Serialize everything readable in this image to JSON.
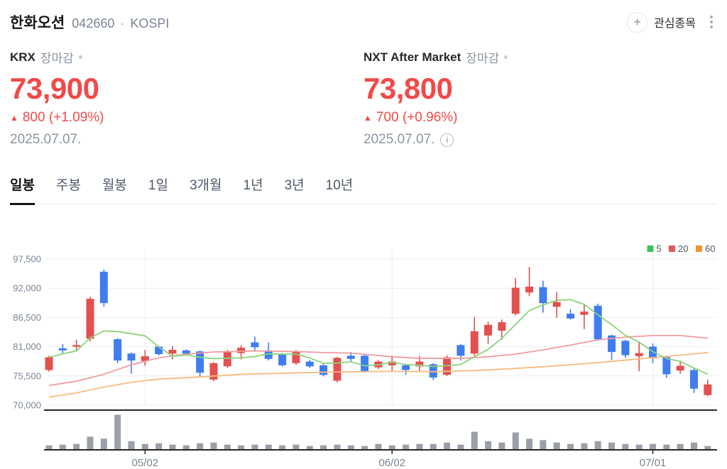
{
  "header": {
    "title": "한화오션",
    "code": "042660",
    "separator": "·",
    "market": "KOSPI",
    "watchlist_label": "관심종목",
    "plus_glyph": "+"
  },
  "markets": {
    "krx": {
      "name": "KRX",
      "status": "장마감",
      "price": "73,900",
      "arrow": "▲",
      "change": "800 (+1.09%)",
      "date": "2025.07.07."
    },
    "nxt": {
      "name": "NXT After Market",
      "status": "장마감",
      "price": "73,800",
      "arrow": "▲",
      "change": "700 (+0.96%)",
      "date": "2025.07.07.",
      "info_glyph": "i"
    }
  },
  "tabs": {
    "items": [
      "일봉",
      "주봉",
      "월봉",
      "1일",
      "3개월",
      "1년",
      "3년",
      "10년"
    ],
    "active_index": 0
  },
  "chart_data": {
    "type": "candlestick",
    "title": "한화오션 일봉 캔들 차트 (이동평균 5/20/60, 거래량)",
    "y_axis": {
      "min": 70000,
      "max": 97500,
      "ticks": [
        97500,
        92000,
        86500,
        81000,
        75500,
        70000
      ],
      "labels": [
        "97,500",
        "92,000",
        "86,500",
        "81,000",
        "75,500",
        "70,000"
      ]
    },
    "x_axis": {
      "tick_labels": [
        {
          "index": 7,
          "label": "05/02"
        },
        {
          "index": 25,
          "label": "06/02"
        },
        {
          "index": 44,
          "label": "07/01"
        }
      ]
    },
    "legend": [
      {
        "label": "5",
        "color": "#3dbe5a"
      },
      {
        "label": "20",
        "color": "#e4575c"
      },
      {
        "label": "60",
        "color": "#ef9433"
      }
    ],
    "colors": {
      "up": "#e25050",
      "down": "#3f7df0",
      "ma5": "#8bd37b",
      "ma20": "#f29ba0",
      "ma60": "#f6bb80",
      "volume": "#9ba0a8",
      "grid": "#ebeef1",
      "axis": "#26282b",
      "axis_label": "#7a8594",
      "legend_text": "#4e5968"
    },
    "candles_format": "[open, high, low, close]",
    "candles": [
      [
        76600,
        79300,
        76300,
        79000
      ],
      [
        80700,
        81500,
        79600,
        80300
      ],
      [
        81000,
        82300,
        80300,
        81300
      ],
      [
        82500,
        90400,
        82000,
        90000
      ],
      [
        95100,
        95500,
        88500,
        89200
      ],
      [
        82400,
        82600,
        77900,
        78400
      ],
      [
        79700,
        79900,
        75900,
        78400
      ],
      [
        78300,
        80400,
        77400,
        79200
      ],
      [
        81000,
        81200,
        79300,
        79600
      ],
      [
        79700,
        81100,
        78600,
        80400
      ],
      [
        80300,
        80500,
        79500,
        79700
      ],
      [
        80100,
        80300,
        75400,
        76100
      ],
      [
        74800,
        78100,
        74500,
        77900
      ],
      [
        77300,
        80400,
        77000,
        80000
      ],
      [
        79800,
        81300,
        78600,
        80800
      ],
      [
        81800,
        82900,
        80300,
        80900
      ],
      [
        80300,
        81800,
        78400,
        78700
      ],
      [
        79500,
        79800,
        77300,
        77500
      ],
      [
        77900,
        80400,
        77600,
        80100
      ],
      [
        78200,
        78500,
        77000,
        77300
      ],
      [
        77500,
        77800,
        75400,
        75700
      ],
      [
        74600,
        79100,
        74300,
        78900
      ],
      [
        79300,
        80000,
        78000,
        78700
      ],
      [
        79300,
        79500,
        76100,
        76400
      ],
      [
        77100,
        78500,
        76800,
        78200
      ],
      [
        77500,
        79300,
        76400,
        78200
      ],
      [
        77500,
        77700,
        75700,
        76600
      ],
      [
        77300,
        79300,
        76400,
        78200
      ],
      [
        77700,
        77900,
        74700,
        75200
      ],
      [
        75700,
        79400,
        75500,
        79000
      ],
      [
        81300,
        81500,
        78400,
        79300
      ],
      [
        79700,
        86600,
        79300,
        83900
      ],
      [
        83100,
        85700,
        81500,
        85100
      ],
      [
        84000,
        86100,
        82300,
        85600
      ],
      [
        87200,
        93900,
        86900,
        92100
      ],
      [
        91200,
        96000,
        90500,
        92300
      ],
      [
        92200,
        93400,
        87400,
        89200
      ],
      [
        88500,
        91300,
        86400,
        89400
      ],
      [
        87200,
        88000,
        86100,
        86300
      ],
      [
        87000,
        89100,
        84300,
        87600
      ],
      [
        88700,
        89100,
        82100,
        82400
      ],
      [
        83100,
        83300,
        78500,
        80000
      ],
      [
        82100,
        82300,
        78900,
        79400
      ],
      [
        79200,
        81800,
        76400,
        79800
      ],
      [
        81000,
        81600,
        77900,
        78800
      ],
      [
        79000,
        79300,
        75100,
        75800
      ],
      [
        76500,
        78200,
        75900,
        77400
      ],
      [
        76600,
        76900,
        72300,
        73100
      ],
      [
        71900,
        74800,
        71700,
        73900
      ]
    ],
    "volume_relative": [
      12,
      14,
      16,
      37,
      31,
      100,
      24,
      16,
      18,
      14,
      12,
      18,
      20,
      14,
      12,
      14,
      14,
      12,
      14,
      10,
      12,
      14,
      12,
      10,
      16,
      12,
      14,
      16,
      16,
      20,
      14,
      51,
      24,
      20,
      49,
      31,
      27,
      20,
      16,
      18,
      24,
      20,
      16,
      14,
      16,
      14,
      16,
      20,
      10
    ],
    "ma20_points": [
      [
        0,
        73700
      ],
      [
        2,
        74500
      ],
      [
        4,
        75800
      ],
      [
        6,
        77600
      ],
      [
        8,
        78900
      ],
      [
        10,
        79600
      ],
      [
        12,
        80000
      ],
      [
        15,
        80200
      ],
      [
        18,
        80100
      ],
      [
        20,
        79900
      ],
      [
        22,
        79800
      ],
      [
        25,
        79100
      ],
      [
        27,
        78800
      ],
      [
        30,
        78800
      ],
      [
        32,
        79100
      ],
      [
        34,
        79600
      ],
      [
        36,
        80400
      ],
      [
        38,
        81300
      ],
      [
        40,
        82300
      ],
      [
        42,
        82800
      ],
      [
        44,
        83100
      ],
      [
        46,
        83100
      ],
      [
        48,
        82600
      ]
    ],
    "ma60_points": [
      [
        0,
        71500
      ],
      [
        2,
        72300
      ],
      [
        4,
        73400
      ],
      [
        6,
        74300
      ],
      [
        8,
        74900
      ],
      [
        11,
        75300
      ],
      [
        14,
        75800
      ],
      [
        17,
        76000
      ],
      [
        20,
        76200
      ],
      [
        24,
        76350
      ],
      [
        28,
        76300
      ],
      [
        31,
        76500
      ],
      [
        34,
        76900
      ],
      [
        37,
        77400
      ],
      [
        40,
        78000
      ],
      [
        43,
        78700
      ],
      [
        46,
        79400
      ],
      [
        48,
        79900
      ]
    ]
  }
}
